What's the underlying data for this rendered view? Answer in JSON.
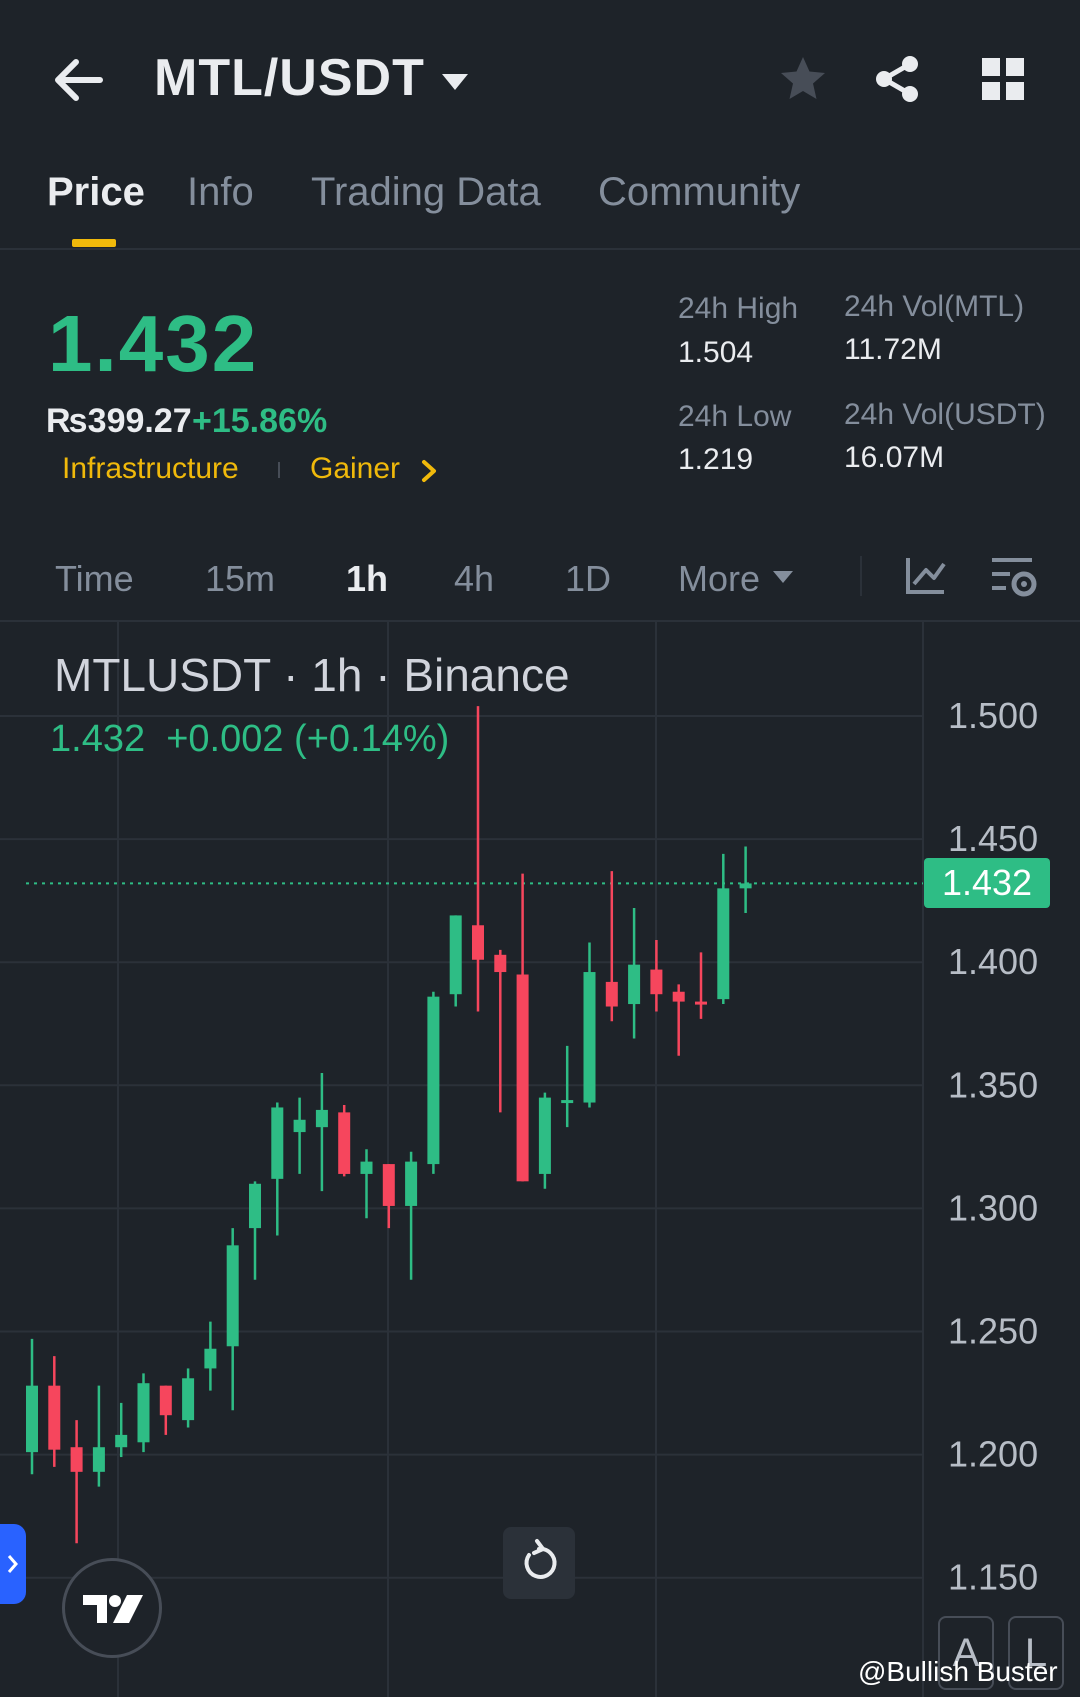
{
  "header": {
    "pair": "MTL/USDT",
    "icons": [
      "back-arrow-icon",
      "caret-down-icon",
      "star-icon",
      "share-icon",
      "grid-icon"
    ]
  },
  "tabs": [
    {
      "label": "Price",
      "active": true
    },
    {
      "label": "Info",
      "active": false
    },
    {
      "label": "Trading Data",
      "active": false
    },
    {
      "label": "Community",
      "active": false
    }
  ],
  "ticker": {
    "last_price": "1.432",
    "fiat_price": "₨399.27",
    "change_pct": "+15.86%",
    "tags": [
      "Infrastructure",
      "Gainer"
    ],
    "high_label": "24h High",
    "high_value": "1.504",
    "low_label": "24h Low",
    "low_value": "1.219",
    "vol_base_label": "24h Vol(MTL)",
    "vol_base_value": "11.72M",
    "vol_quote_label": "24h Vol(USDT)",
    "vol_quote_value": "16.07M"
  },
  "intervals": {
    "items": [
      "Time",
      "15m",
      "1h",
      "4h",
      "1D",
      "More"
    ],
    "active": "1h"
  },
  "chart_header": {
    "symbol_line": "MTLUSDT · 1h · Binance",
    "change_line": "1.432  +0.002 (+0.14%)"
  },
  "chart_buttons": {
    "auto": "A",
    "log": "L"
  },
  "watermark": "@Bullish Buster",
  "colors": {
    "background": "#1e2329",
    "up": "#2ebd85",
    "down": "#f6465d",
    "accent": "#f0b90b"
  },
  "chart_data": {
    "type": "candlestick",
    "ylim": [
      1.13,
      1.53
    ],
    "y_ticks": [
      "1.500",
      "1.450",
      "1.400",
      "1.350",
      "1.300",
      "1.250",
      "1.200",
      "1.150"
    ],
    "last_price_label": "1.432",
    "last_value": 1.432,
    "candles": [
      {
        "o": 1.201,
        "h": 1.247,
        "l": 1.192,
        "c": 1.228
      },
      {
        "o": 1.228,
        "h": 1.24,
        "l": 1.195,
        "c": 1.202
      },
      {
        "o": 1.203,
        "h": 1.214,
        "l": 1.164,
        "c": 1.193
      },
      {
        "o": 1.193,
        "h": 1.228,
        "l": 1.187,
        "c": 1.203
      },
      {
        "o": 1.203,
        "h": 1.221,
        "l": 1.199,
        "c": 1.208
      },
      {
        "o": 1.205,
        "h": 1.233,
        "l": 1.201,
        "c": 1.229
      },
      {
        "o": 1.228,
        "h": 1.228,
        "l": 1.208,
        "c": 1.216
      },
      {
        "o": 1.214,
        "h": 1.235,
        "l": 1.211,
        "c": 1.231
      },
      {
        "o": 1.235,
        "h": 1.254,
        "l": 1.226,
        "c": 1.243
      },
      {
        "o": 1.244,
        "h": 1.292,
        "l": 1.218,
        "c": 1.285
      },
      {
        "o": 1.292,
        "h": 1.311,
        "l": 1.271,
        "c": 1.31
      },
      {
        "o": 1.312,
        "h": 1.343,
        "l": 1.289,
        "c": 1.341
      },
      {
        "o": 1.331,
        "h": 1.345,
        "l": 1.314,
        "c": 1.336
      },
      {
        "o": 1.333,
        "h": 1.355,
        "l": 1.307,
        "c": 1.34
      },
      {
        "o": 1.339,
        "h": 1.342,
        "l": 1.313,
        "c": 1.314
      },
      {
        "o": 1.314,
        "h": 1.324,
        "l": 1.296,
        "c": 1.319
      },
      {
        "o": 1.318,
        "h": 1.318,
        "l": 1.292,
        "c": 1.301
      },
      {
        "o": 1.301,
        "h": 1.323,
        "l": 1.271,
        "c": 1.319
      },
      {
        "o": 1.318,
        "h": 1.388,
        "l": 1.314,
        "c": 1.386
      },
      {
        "o": 1.387,
        "h": 1.419,
        "l": 1.382,
        "c": 1.419
      },
      {
        "o": 1.415,
        "h": 1.504,
        "l": 1.38,
        "c": 1.401
      },
      {
        "o": 1.403,
        "h": 1.405,
        "l": 1.339,
        "c": 1.396
      },
      {
        "o": 1.395,
        "h": 1.436,
        "l": 1.311,
        "c": 1.311
      },
      {
        "o": 1.314,
        "h": 1.347,
        "l": 1.308,
        "c": 1.345
      },
      {
        "o": 1.344,
        "h": 1.366,
        "l": 1.333,
        "c": 1.344
      },
      {
        "o": 1.343,
        "h": 1.408,
        "l": 1.341,
        "c": 1.396
      },
      {
        "o": 1.392,
        "h": 1.437,
        "l": 1.376,
        "c": 1.382
      },
      {
        "o": 1.383,
        "h": 1.422,
        "l": 1.369,
        "c": 1.399
      },
      {
        "o": 1.397,
        "h": 1.409,
        "l": 1.38,
        "c": 1.387
      },
      {
        "o": 1.388,
        "h": 1.391,
        "l": 1.362,
        "c": 1.384
      },
      {
        "o": 1.384,
        "h": 1.404,
        "l": 1.377,
        "c": 1.383
      },
      {
        "o": 1.385,
        "h": 1.444,
        "l": 1.383,
        "c": 1.43
      },
      {
        "o": 1.43,
        "h": 1.447,
        "l": 1.42,
        "c": 1.432
      }
    ]
  }
}
